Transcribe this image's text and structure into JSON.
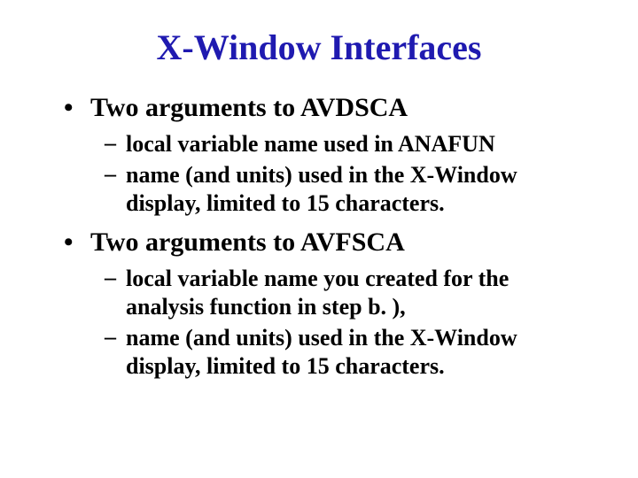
{
  "title": {
    "text": "X-Window Interfaces",
    "color": "#1f1ab0",
    "fontsize": 40
  },
  "body": {
    "level1_fontsize": 30,
    "level2_fontsize": 26,
    "bullet_char": "•",
    "dash_char": "–",
    "text_color": "#000000"
  },
  "items": [
    {
      "text": "Two arguments to AVDSCA",
      "sub": [
        "local variable name used in ANAFUN",
        "name (and units) used in the X-Window display, limited to 15 characters."
      ]
    },
    {
      "text": "Two arguments to AVFSCA",
      "sub": [
        "local variable name you created for the analysis function in step b. ),",
        "name (and units) used in the X-Window display, limited to 15 characters."
      ]
    }
  ]
}
